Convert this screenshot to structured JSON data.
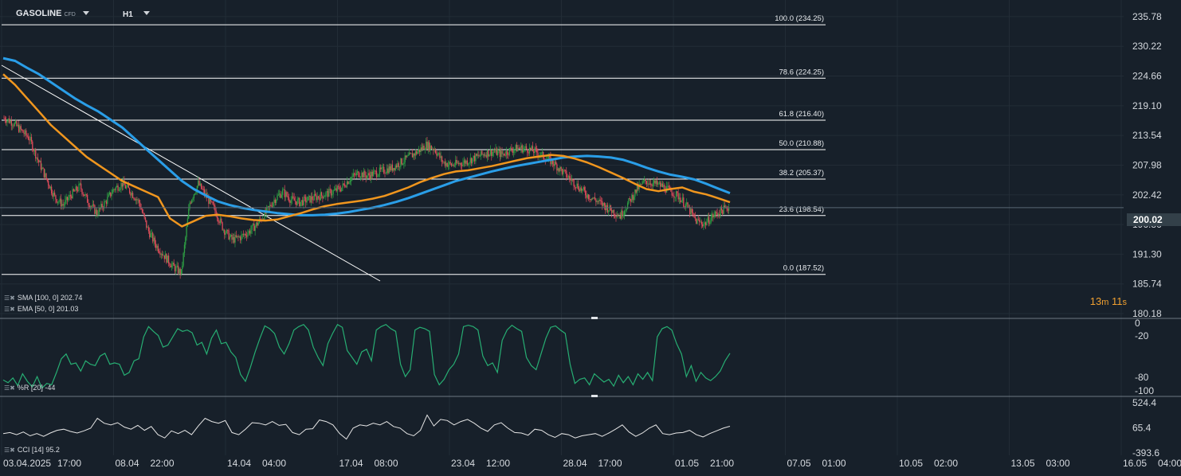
{
  "header": {
    "symbol": "GASOLINE",
    "symbol_type": "CFD",
    "timeframe": "H1"
  },
  "timer": {
    "minutes": "13",
    "m": "m",
    "seconds": "11",
    "s": "s"
  },
  "current_price": "200.02",
  "legend": {
    "sma": "SMA [100, 0] 202.74",
    "ema": "EMA [50, 0] 201.03",
    "wr": "%R [20] -44",
    "cci": "CCI [14] 95.2"
  },
  "colors": {
    "background": "#17202a",
    "grid": "#222c36",
    "up": "#2ea043",
    "down": "#e04b5a",
    "sma": "#2a9ee8",
    "ema": "#f0961e",
    "wr": "#27ae73",
    "cci": "#e6e6e6",
    "fib": "#ffffff",
    "trendline": "#ffffff",
    "timer": "#f0a030"
  },
  "chart_data": [
    {
      "type": "candlestick",
      "title": "GASOLINE CFD H1",
      "ylim": [
        180.18,
        238.0
      ],
      "price_ticks": [
        "235.78",
        "230.22",
        "224.66",
        "219.10",
        "213.54",
        "207.98",
        "202.42",
        "196.86",
        "191.30",
        "185.74",
        "180.18"
      ],
      "time_ticks": [
        "03.04.2025",
        "17:00",
        "08.04",
        "22:00",
        "14.04",
        "04:00",
        "17.04",
        "08:00",
        "23.04",
        "12:00",
        "28.04",
        "17:00",
        "01.05",
        "21:00",
        "07.05",
        "01:00",
        "10.05",
        "02:00",
        "13.05",
        "03:00",
        "16.05",
        "04:00"
      ],
      "fib_levels": [
        {
          "level": "100.0",
          "price": 234.25,
          "label": "100.0 (234.25)"
        },
        {
          "level": "78.6",
          "price": 224.25,
          "label": "78.6 (224.25)"
        },
        {
          "level": "61.8",
          "price": 216.4,
          "label": "61.8 (216.40)"
        },
        {
          "level": "50.0",
          "price": 210.88,
          "label": "50.0 (210.88)"
        },
        {
          "level": "38.2",
          "price": 205.37,
          "label": "38.2 (205.37)"
        },
        {
          "level": "23.6",
          "price": 198.54,
          "label": "23.6 (198.54)"
        },
        {
          "level": "0.0",
          "price": 187.52,
          "label": "0.0 (187.52)"
        }
      ],
      "price_path": [
        216.8,
        216.0,
        214.5,
        213.0,
        209.0,
        205.5,
        202.0,
        200.5,
        202.5,
        204.0,
        201.0,
        199.0,
        201.0,
        203.5,
        204.5,
        203.0,
        201.0,
        196.0,
        193.0,
        191.0,
        189.0,
        187.8,
        201.0,
        204.5,
        202.0,
        199.5,
        196.0,
        194.0,
        194.5,
        195.5,
        197.0,
        199.0,
        201.5,
        203.0,
        201.5,
        201.0,
        201.5,
        202.0,
        202.5,
        203.0,
        203.8,
        205.5,
        206.5,
        206.0,
        206.5,
        207.0,
        207.5,
        208.5,
        209.5,
        210.5,
        211.8,
        211.0,
        208.5,
        208.0,
        208.3,
        208.8,
        209.5,
        210.2,
        210.5,
        210.0,
        210.8,
        211.2,
        211.0,
        210.5,
        209.5,
        208.5,
        207.0,
        205.5,
        204.0,
        202.5,
        201.5,
        200.5,
        199.5,
        198.5,
        201.0,
        203.5,
        205.0,
        204.5,
        204.0,
        203.0,
        202.0,
        200.0,
        197.5,
        197.0,
        198.5,
        199.5,
        200.2
      ],
      "series": [
        {
          "name": "SMA [100, 0]",
          "last": 202.74,
          "values": [
            228.0,
            227.5,
            226.2,
            225.0,
            223.5,
            222.0,
            220.5,
            219.2,
            218.0,
            216.5,
            215.0,
            213.0,
            211.0,
            209.0,
            207.0,
            205.0,
            203.5,
            202.3,
            201.2,
            200.5,
            200.0,
            199.6,
            199.3,
            199.0,
            198.8,
            198.6,
            198.6,
            198.7,
            198.9,
            199.2,
            199.6,
            200.0,
            200.5,
            201.1,
            201.8,
            202.6,
            203.4,
            204.2,
            205.0,
            205.6,
            206.2,
            206.8,
            207.3,
            207.8,
            208.2,
            208.6,
            209.0,
            209.4,
            209.6,
            209.7,
            209.6,
            209.4,
            209.0,
            208.3,
            207.5,
            206.8,
            206.2,
            205.8,
            205.3,
            204.5,
            203.6,
            202.74
          ]
        },
        {
          "name": "EMA [50, 0]",
          "last": 201.03,
          "values": [
            225.0,
            223.0,
            220.5,
            218.0,
            215.5,
            213.5,
            211.5,
            209.5,
            208.0,
            206.5,
            205.0,
            204.0,
            203.0,
            202.0,
            198.0,
            196.5,
            197.5,
            198.5,
            198.7,
            198.4,
            198.0,
            197.7,
            197.6,
            197.8,
            198.4,
            199.0,
            199.7,
            200.3,
            200.7,
            201.0,
            201.3,
            201.7,
            202.2,
            203.0,
            203.8,
            204.8,
            205.6,
            206.3,
            206.8,
            207.0,
            207.4,
            207.8,
            208.3,
            208.8,
            209.3,
            209.6,
            209.9,
            209.7,
            209.2,
            208.5,
            207.6,
            206.6,
            205.6,
            204.5,
            203.5,
            203.1,
            203.5,
            203.8,
            203.0,
            202.5,
            201.8,
            201.03
          ]
        }
      ]
    },
    {
      "type": "line",
      "name": "%R [20]",
      "last": -44,
      "ylim": [
        -100,
        0
      ],
      "ticks": [
        "0",
        "-20",
        "-80",
        "-100"
      ],
      "values": [
        -83,
        -87,
        -80,
        -91,
        -74,
        -85,
        -93,
        -78,
        -95,
        -88,
        -90,
        -72,
        -52,
        -45,
        -60,
        -58,
        -70,
        -55,
        -60,
        -62,
        -48,
        -44,
        -60,
        -58,
        -60,
        -76,
        -72,
        -55,
        -52,
        -20,
        -5,
        -12,
        -18,
        -35,
        -32,
        -20,
        -8,
        -12,
        -10,
        -14,
        -32,
        -28,
        -45,
        -22,
        -10,
        -30,
        -28,
        -42,
        -50,
        -75,
        -85,
        -65,
        -42,
        -22,
        -4,
        -8,
        -15,
        -35,
        -45,
        -30,
        -10,
        -5,
        -2,
        -10,
        -35,
        -50,
        -62,
        -30,
        -15,
        -2,
        -6,
        -40,
        -50,
        -60,
        -42,
        -38,
        -55,
        -10,
        -5,
        -2,
        -8,
        -12,
        -60,
        -78,
        -68,
        -10,
        -6,
        -8,
        -12,
        -75,
        -90,
        -82,
        -68,
        -60,
        -45,
        -5,
        -3,
        -5,
        -10,
        -48,
        -62,
        -58,
        -72,
        -25,
        -10,
        -3,
        -8,
        -12,
        -50,
        -62,
        -68,
        -45,
        -22,
        -6,
        -4,
        -10,
        -15,
        -60,
        -88,
        -82,
        -80,
        -90,
        -74,
        -80,
        -86,
        -82,
        -92,
        -76,
        -87,
        -78,
        -90,
        -74,
        -82,
        -72,
        -84,
        -20,
        -8,
        -5,
        -10,
        -30,
        -45,
        -78,
        -62,
        -85,
        -72,
        -80,
        -84,
        -78,
        -70,
        -55,
        -44
      ]
    },
    {
      "type": "line",
      "name": "CCI [14]",
      "last": 95.2,
      "ylim": [
        -393.6,
        524.4
      ],
      "ticks": [
        "524.4",
        "65.4",
        "-393.6"
      ],
      "values": [
        -40,
        -20,
        -60,
        -10,
        -80,
        -40,
        -90,
        -30,
        20,
        40,
        0,
        -30,
        10,
        60,
        240,
        150,
        120,
        160,
        80,
        40,
        110,
        20,
        90,
        -60,
        -120,
        10,
        -40,
        20,
        -60,
        100,
        240,
        180,
        150,
        200,
        -20,
        -60,
        40,
        160,
        150,
        120,
        180,
        110,
        130,
        -20,
        -60,
        40,
        50,
        210,
        180,
        120,
        -40,
        -140,
        60,
        120,
        100,
        150,
        120,
        180,
        90,
        60,
        -40,
        -80,
        20,
        300,
        100,
        220,
        200,
        120,
        180,
        220,
        150,
        60,
        0,
        120,
        160,
        60,
        -20,
        -30,
        -70,
        40,
        20,
        -60,
        -110,
        -40,
        -60,
        -120,
        -80,
        -60,
        -40,
        -90,
        -30,
        40,
        120,
        -10,
        -90,
        -30,
        60,
        120,
        -40,
        -60,
        -30,
        -20,
        20,
        -60,
        -100,
        -40,
        10,
        60,
        95
      ]
    }
  ]
}
